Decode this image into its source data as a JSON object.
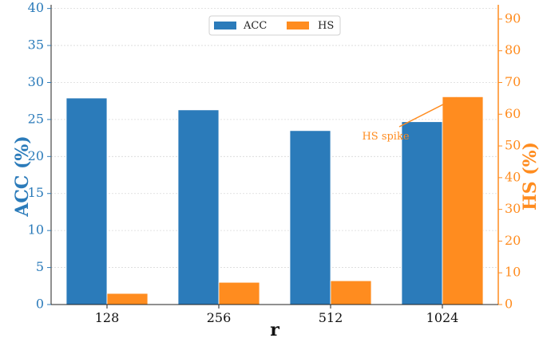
{
  "chart_data": {
    "type": "bar",
    "categories": [
      "128",
      "256",
      "512",
      "1024"
    ],
    "xlabel": "r",
    "series": [
      {
        "name": "ACC",
        "axis": "left",
        "color": "#2b7bba",
        "values": [
          27.9,
          26.3,
          23.5,
          24.7
        ]
      },
      {
        "name": "HS",
        "axis": "right",
        "color": "#ff8c1f",
        "values": [
          3.5,
          7.0,
          7.5,
          65.5
        ]
      }
    ],
    "y_left": {
      "label": "ACC (%)",
      "lim": [
        0,
        40.5
      ],
      "ticks": [
        0,
        5,
        10,
        15,
        20,
        25,
        30,
        35,
        40
      ],
      "color": "#2b7bba"
    },
    "y_right": {
      "label": "HS (%)",
      "lim": [
        0,
        94.5
      ],
      "ticks": [
        0,
        10,
        20,
        30,
        40,
        50,
        60,
        70,
        80,
        90
      ],
      "color": "#ff8c1f"
    },
    "legend": {
      "placement": "top-center"
    },
    "grid": {
      "horizontal": true,
      "style": "dotted"
    },
    "annotation": {
      "text": "HS spike",
      "category": "1024",
      "series": "HS",
      "color": "#ff8c1f"
    }
  }
}
